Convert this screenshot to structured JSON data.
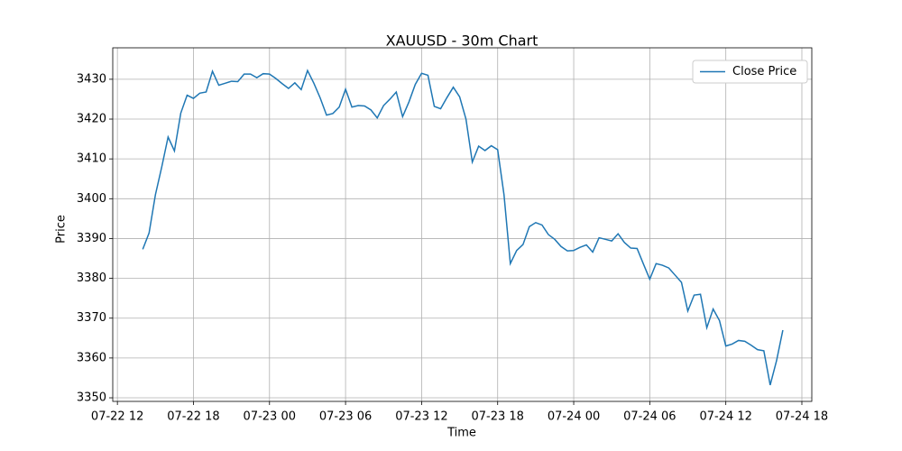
{
  "chart_data": {
    "type": "line",
    "title": "XAUUSD - 30m Chart",
    "xlabel": "Time",
    "ylabel": "Price",
    "grid": true,
    "legend": "upper right",
    "x": [
      "07-22 14:00",
      "07-22 14:30",
      "07-22 15:00",
      "07-22 15:30",
      "07-22 16:00",
      "07-22 16:30",
      "07-22 17:00",
      "07-22 17:30",
      "07-22 18:00",
      "07-22 18:30",
      "07-22 19:00",
      "07-22 19:30",
      "07-22 20:00",
      "07-22 20:30",
      "07-22 21:00",
      "07-22 21:30",
      "07-22 22:00",
      "07-22 22:30",
      "07-22 23:00",
      "07-22 23:30",
      "07-23 00:00",
      "07-23 00:30",
      "07-23 01:00",
      "07-23 01:30",
      "07-23 02:00",
      "07-23 02:30",
      "07-23 03:00",
      "07-23 03:30",
      "07-23 04:00",
      "07-23 04:30",
      "07-23 05:00",
      "07-23 05:30",
      "07-23 06:00",
      "07-23 06:30",
      "07-23 07:00",
      "07-23 07:30",
      "07-23 08:00",
      "07-23 08:30",
      "07-23 09:00",
      "07-23 09:30",
      "07-23 10:00",
      "07-23 10:30",
      "07-23 11:00",
      "07-23 11:30",
      "07-23 12:00",
      "07-23 12:30",
      "07-23 13:00",
      "07-23 13:30",
      "07-23 14:00",
      "07-23 14:30",
      "07-23 15:00",
      "07-23 15:30",
      "07-23 16:00",
      "07-23 16:30",
      "07-23 17:00",
      "07-23 17:30",
      "07-23 18:00",
      "07-23 18:30",
      "07-23 19:00",
      "07-23 19:30",
      "07-23 20:00",
      "07-23 20:30",
      "07-23 21:00",
      "07-23 21:30",
      "07-23 22:00",
      "07-23 22:30",
      "07-23 23:00",
      "07-23 23:30",
      "07-24 00:00",
      "07-24 00:30",
      "07-24 01:00",
      "07-24 01:30",
      "07-24 02:00",
      "07-24 02:30",
      "07-24 03:00",
      "07-24 03:30",
      "07-24 04:00",
      "07-24 04:30",
      "07-24 05:00",
      "07-24 05:30",
      "07-24 06:00",
      "07-24 06:30",
      "07-24 07:00",
      "07-24 07:30",
      "07-24 08:00",
      "07-24 08:30",
      "07-24 09:00",
      "07-24 09:30",
      "07-24 10:00",
      "07-24 10:30",
      "07-24 11:00",
      "07-24 11:30",
      "07-24 12:00",
      "07-24 12:30",
      "07-24 13:00",
      "07-24 13:30",
      "07-24 14:00",
      "07-24 14:30",
      "07-24 15:00",
      "07-24 15:30",
      "07-24 16:00",
      "07-24 16:30"
    ],
    "series": [
      {
        "name": "Close Price",
        "color": "#1f77b4",
        "values": [
          3387.3,
          3391.4,
          3401,
          3408,
          3415.5,
          3412,
          3421.5,
          3426,
          3425.2,
          3426.5,
          3426.8,
          3432,
          3428.5,
          3429,
          3429.5,
          3429.4,
          3431.3,
          3431.3,
          3430.4,
          3431.4,
          3431.3,
          3430.2,
          3428.9,
          3427.7,
          3429.1,
          3427.4,
          3432.2,
          3429,
          3425.3,
          3421,
          3421.4,
          3423,
          3427.5,
          3423,
          3423.4,
          3423.3,
          3422.3,
          3420.3,
          3423.4,
          3425,
          3426.8,
          3420.6,
          3424.3,
          3428.7,
          3431.5,
          3431,
          3423.2,
          3422.6,
          3425.4,
          3428,
          3425.6,
          3420,
          3409.2,
          3413.2,
          3412.1,
          3413.3,
          3412.3,
          3401,
          3383.7,
          3387,
          3388.5,
          3393,
          3394,
          3393.4,
          3391,
          3389.8,
          3388,
          3386.9,
          3387,
          3387.8,
          3388.4,
          3386.6,
          3390.2,
          3389.8,
          3389.4,
          3391.2,
          3389,
          3387.6,
          3387.5,
          3383.6,
          3379.8,
          3383.7,
          3383.3,
          3382.6,
          3380.8,
          3379,
          3371.8,
          3375.8,
          3376,
          3367.6,
          3372.3,
          3369.4,
          3363,
          3363.5,
          3364.4,
          3364.2,
          3363.2,
          3362.1,
          3361.8,
          3353.2,
          3359.3,
          3367
        ]
      }
    ],
    "xlim": [
      "07-22 11:38",
      "07-24 18:47"
    ],
    "xticks": [
      {
        "value": "07-22 12:00",
        "label": "07-22 12"
      },
      {
        "value": "07-22 18:00",
        "label": "07-22 18"
      },
      {
        "value": "07-23 00:00",
        "label": "07-23 00"
      },
      {
        "value": "07-23 06:00",
        "label": "07-23 06"
      },
      {
        "value": "07-23 12:00",
        "label": "07-23 12"
      },
      {
        "value": "07-23 18:00",
        "label": "07-23 18"
      },
      {
        "value": "07-24 00:00",
        "label": "07-24 00"
      },
      {
        "value": "07-24 06:00",
        "label": "07-24 06"
      },
      {
        "value": "07-24 12:00",
        "label": "07-24 12"
      },
      {
        "value": "07-24 18:00",
        "label": "07-24 18"
      }
    ],
    "ylim": [
      3349.1,
      3437.9
    ],
    "yticks": [
      3350,
      3360,
      3370,
      3380,
      3390,
      3400,
      3410,
      3420,
      3430
    ]
  }
}
